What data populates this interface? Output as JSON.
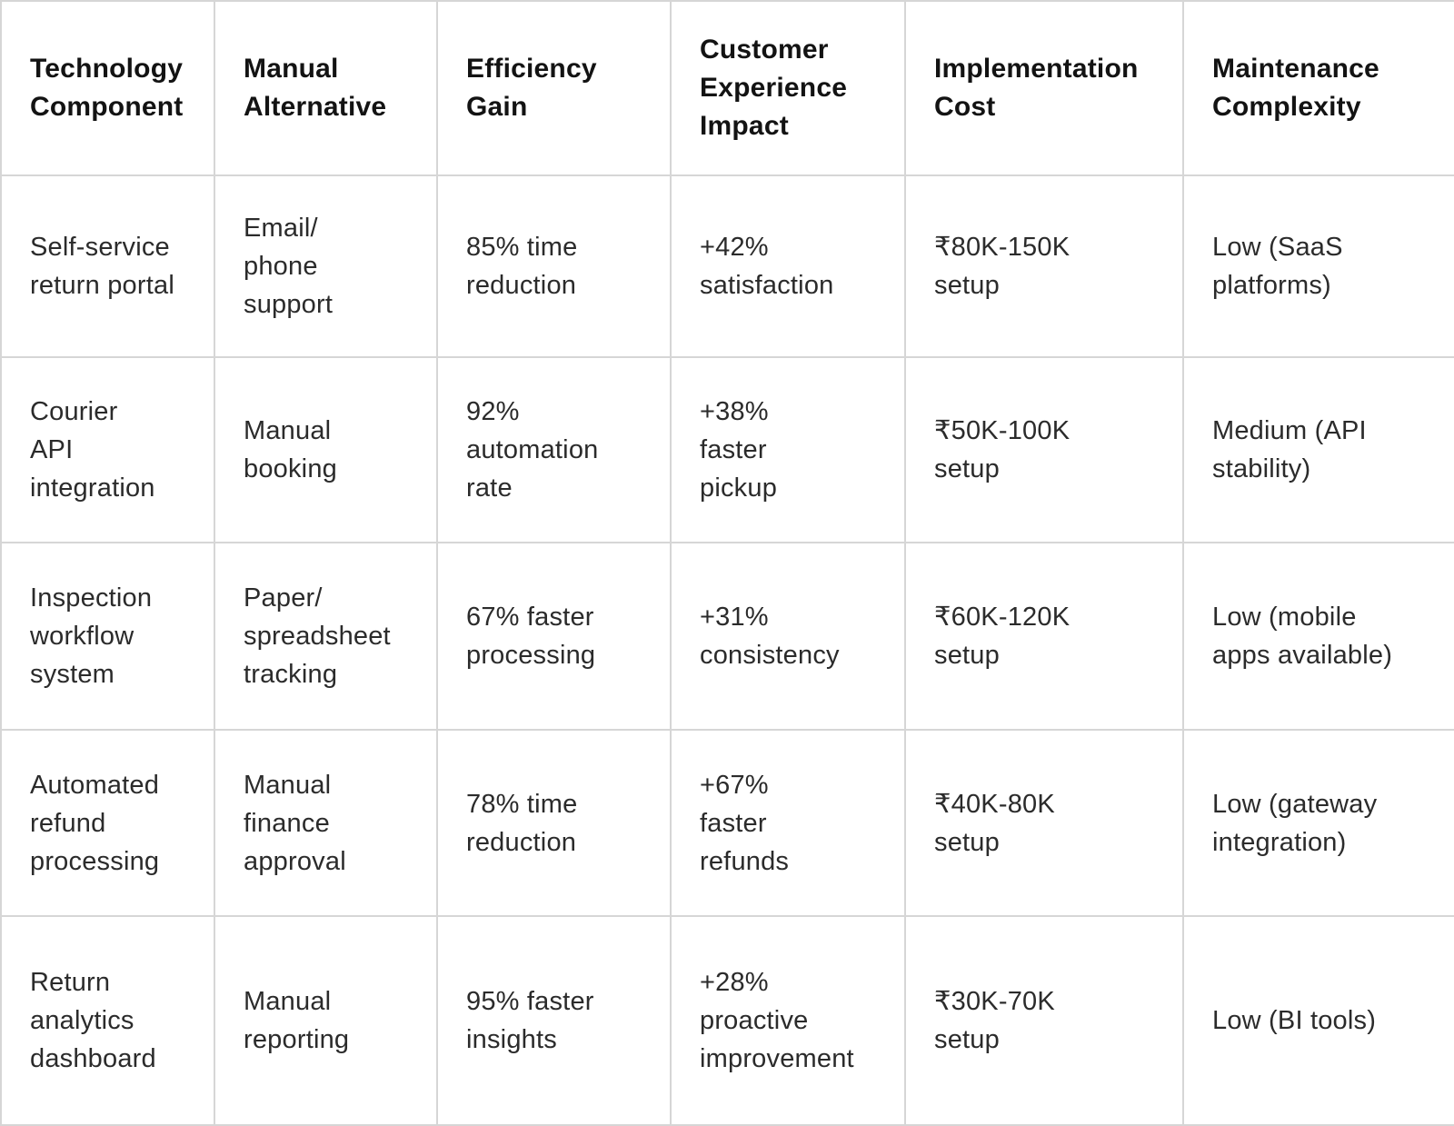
{
  "colors": {
    "cell_background": "#ffffff",
    "grid_border": "#d6d6d6",
    "header_text": "#131313",
    "body_text": "#2b2b2b"
  },
  "table": {
    "columns": [
      {
        "label": "Technology\nComponent"
      },
      {
        "label": "Manual\nAlternative"
      },
      {
        "label": "Efficiency\nGain"
      },
      {
        "label": "Customer\nExperience\nImpact"
      },
      {
        "label": "Implementation\nCost"
      },
      {
        "label": "Maintenance\nComplexity"
      }
    ],
    "rows": [
      {
        "cells": [
          "Self-service\nreturn portal",
          "Email/\nphone\nsupport",
          "85% time\nreduction",
          "+42%\nsatisfaction",
          "₹80K-150K\nsetup",
          "Low (SaaS\nplatforms)"
        ]
      },
      {
        "cells": [
          "Courier\nAPI\nintegration",
          "Manual\nbooking",
          "92%\nautomation\nrate",
          "+38%\nfaster\npickup",
          "₹50K-100K\nsetup",
          "Medium (API\nstability)"
        ]
      },
      {
        "cells": [
          "Inspection\nworkflow\nsystem",
          "Paper/\nspreadsheet\ntracking",
          "67% faster\nprocessing",
          "+31%\nconsistency",
          "₹60K-120K\nsetup",
          "Low (mobile\napps available)"
        ]
      },
      {
        "cells": [
          "Automated\nrefund\nprocessing",
          "Manual\nfinance\napproval",
          "78% time\nreduction",
          "+67%\nfaster\nrefunds",
          "₹40K-80K\nsetup",
          "Low (gateway\nintegration)"
        ]
      },
      {
        "cells": [
          "Return\nanalytics\ndashboard",
          "Manual\nreporting",
          "95% faster\ninsights",
          "+28%\nproactive\nimprovement",
          "₹30K-70K\nsetup",
          "Low (BI tools)"
        ]
      }
    ]
  }
}
